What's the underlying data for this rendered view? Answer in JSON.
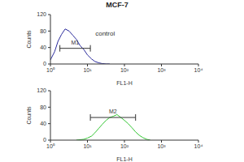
{
  "title": "MCF-7",
  "chart_data": [
    {
      "type": "line",
      "x": [
        1,
        1.3,
        1.6,
        2,
        2.5,
        3.2,
        4,
        5,
        6.3,
        8,
        10,
        13,
        16,
        20,
        25,
        32,
        40
      ],
      "values": [
        10,
        30,
        55,
        72,
        85,
        80,
        70,
        60,
        45,
        35,
        22,
        12,
        6,
        3,
        1,
        0,
        0
      ],
      "color": "#2b2b9c",
      "xlim": [
        1,
        10000
      ],
      "xticks": [
        {
          "value": 1,
          "label": "10⁰"
        },
        {
          "value": 10,
          "label": "10¹"
        },
        {
          "value": 100,
          "label": "10²"
        },
        {
          "value": 1000,
          "label": "10³"
        },
        {
          "value": 10000,
          "label": "10⁴"
        }
      ],
      "ylim": [
        0,
        120
      ],
      "yticks": [
        0,
        40,
        80,
        120
      ],
      "log": "x",
      "x_label": "FL1-H",
      "y_label": "Counts",
      "markers": [
        {
          "label": "M1",
          "x": [
            1.8,
            12
          ],
          "y": 38
        }
      ],
      "annotations": [
        {
          "text": "control",
          "x": 30,
          "y": 75
        }
      ]
    },
    {
      "type": "line",
      "x": [
        5,
        8,
        10,
        13,
        16,
        20,
        25,
        32,
        40,
        50,
        63,
        80,
        100,
        126,
        160,
        200,
        250,
        316,
        400,
        500
      ],
      "values": [
        0,
        2,
        5,
        10,
        18,
        28,
        38,
        48,
        55,
        58,
        62,
        55,
        48,
        40,
        30,
        20,
        12,
        6,
        2,
        0
      ],
      "color": "#33c633",
      "xlim": [
        1,
        10000
      ],
      "xticks": [
        {
          "value": 1,
          "label": "10⁰"
        },
        {
          "value": 10,
          "label": "10¹"
        },
        {
          "value": 100,
          "label": "10²"
        },
        {
          "value": 1000,
          "label": "10³"
        },
        {
          "value": 10000,
          "label": "10⁴"
        }
      ],
      "ylim": [
        0,
        120
      ],
      "yticks": [
        0,
        40,
        80,
        120
      ],
      "log": "x",
      "x_label": "FL1-H",
      "y_label": "Counts",
      "markers": [
        {
          "label": "M2",
          "x": [
            12,
            200
          ],
          "y": 55
        }
      ]
    }
  ]
}
